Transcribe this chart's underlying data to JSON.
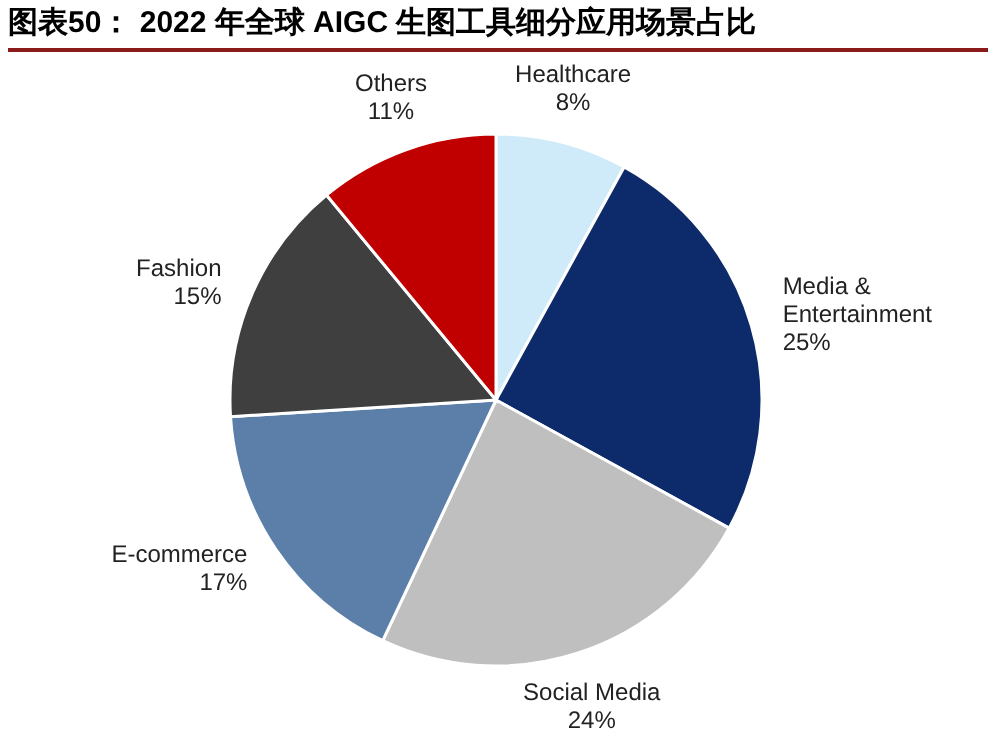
{
  "chart_data": {
    "type": "pie",
    "title": "图表50： 2022 年全球 AIGC 生图工具细分应用场景占比",
    "categories": [
      "Healthcare",
      "Media & Entertainment",
      "Social Media",
      "E-commerce",
      "Fashion",
      "Others"
    ],
    "values": [
      8,
      25,
      24,
      17,
      15,
      11
    ],
    "colors": [
      "#cfeaf9",
      "#0d2b6b",
      "#bfbfbf",
      "#5b7fa8",
      "#3f3f3f",
      "#c00000"
    ],
    "value_labels": [
      "8%",
      "25%",
      "24%",
      "17%",
      "15%",
      "11%"
    ]
  }
}
